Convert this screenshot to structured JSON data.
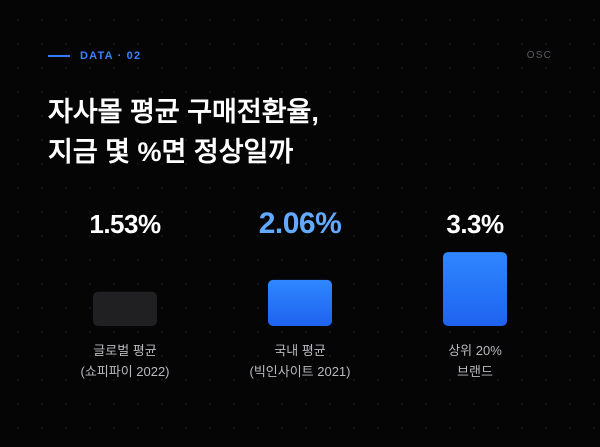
{
  "header": {
    "eyebrow": "DATA · 02",
    "brand": "OSC"
  },
  "title_lines": [
    "자사몰 평균 구매전환율,",
    "지금 몇 %면 정상일까"
  ],
  "colors": {
    "background": "#050506",
    "accent": "#3a82ff",
    "bar_muted": "#202022",
    "bar_blue_top": "#2f86ff",
    "bar_blue_bottom": "#1e63ef",
    "value_highlight": "#62aaff"
  },
  "chart_data": {
    "type": "bar",
    "categories": [
      [
        "글로벌 평균",
        "(쇼피파이 2022)"
      ],
      [
        "국내 평균",
        "(빅인사이트 2021)"
      ],
      [
        "상위 20%",
        "브랜드"
      ]
    ],
    "values": [
      1.53,
      2.06,
      3.3
    ],
    "value_labels": [
      "1.53%",
      "2.06%",
      "3.3%"
    ],
    "highlight_index": 1,
    "bar_colors": [
      "muted",
      "blue",
      "blue"
    ]
  }
}
